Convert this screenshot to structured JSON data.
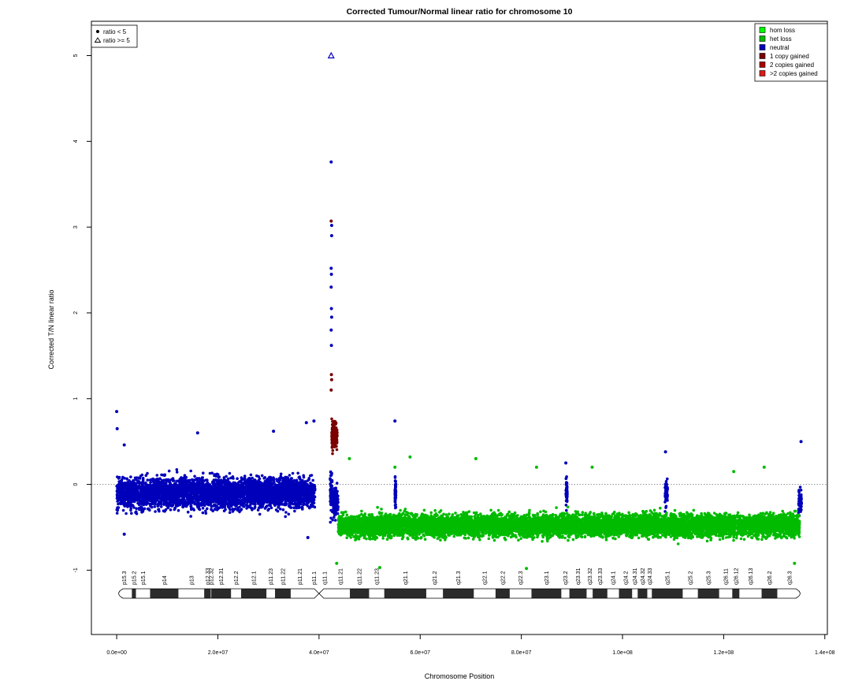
{
  "chart_data": {
    "type": "scatter",
    "title": "Corrected Tumour/Normal linear ratio for chromosome  10",
    "xlabel": "Chromosome Position",
    "ylabel": "Corrected T/N linear ratio",
    "xlim": [
      -5000000,
      140500000
    ],
    "ylim": [
      -1.75,
      5.4
    ],
    "x_ticks": [
      0,
      20000000,
      40000000,
      60000000,
      80000000,
      100000000,
      120000000,
      140000000
    ],
    "x_tick_labels": [
      "0.0e+00",
      "2.0e+07",
      "4.0e+07",
      "6.0e+07",
      "8.0e+07",
      "1.0e+08",
      "1.2e+08",
      "1.4e+08"
    ],
    "y_ticks": [
      -1,
      0,
      1,
      2,
      3,
      4,
      5
    ],
    "y_tick_labels": [
      "-1",
      "0",
      "1",
      "2",
      "3",
      "4",
      "5"
    ],
    "reference_line_y": 0,
    "colors": {
      "hom_loss": "#00ff00",
      "het_loss": "#00bb00",
      "neutral": "#0000bb",
      "one_copy_gained": "#7a0000",
      "two_copies_gained": "#aa0000",
      "gt_two_copies_gained": "#dd1a1a"
    },
    "series": [
      {
        "name": "neutral",
        "color": "#0000bb",
        "segments": [
          {
            "x_start": 0,
            "x_end": 39200000,
            "mean": -0.1,
            "spread": 0.34
          },
          {
            "x_start": 42200000,
            "x_end": 42600000,
            "mean": -0.1,
            "spread": 0.5
          },
          {
            "x_start": 42650000,
            "x_end": 43800000,
            "mean": -0.2,
            "spread": 0.3
          },
          {
            "x_start": 55000000,
            "x_end": 55200000,
            "mean": -0.1,
            "spread": 0.3
          },
          {
            "x_start": 88800000,
            "x_end": 89100000,
            "mean": -0.1,
            "spread": 0.3
          },
          {
            "x_start": 108400000,
            "x_end": 108900000,
            "mean": -0.1,
            "spread": 0.3
          },
          {
            "x_start": 134800000,
            "x_end": 135400000,
            "mean": -0.2,
            "spread": 0.3
          }
        ],
        "outliers": [
          {
            "x": 0,
            "y": 0.85
          },
          {
            "x": 100000,
            "y": 0.65
          },
          {
            "x": 1500000,
            "y": 0.46
          },
          {
            "x": 16000000,
            "y": 0.6
          },
          {
            "x": 31000000,
            "y": 0.62
          },
          {
            "x": 37500000,
            "y": 0.72
          },
          {
            "x": 39000000,
            "y": 0.74
          },
          {
            "x": 37800000,
            "y": -0.62
          },
          {
            "x": 1500000,
            "y": -0.58
          },
          {
            "x": 42400000,
            "y": 3.76
          },
          {
            "x": 42500000,
            "y": 3.02
          },
          {
            "x": 42500000,
            "y": 2.9
          },
          {
            "x": 42400000,
            "y": 2.52
          },
          {
            "x": 42450000,
            "y": 2.45
          },
          {
            "x": 42400000,
            "y": 2.3
          },
          {
            "x": 42450000,
            "y": 2.05
          },
          {
            "x": 42500000,
            "y": 1.95
          },
          {
            "x": 42400000,
            "y": 1.8
          },
          {
            "x": 42450000,
            "y": 1.62
          },
          {
            "x": 55000000,
            "y": 0.74
          },
          {
            "x": 88800000,
            "y": 0.25
          },
          {
            "x": 108500000,
            "y": 0.38
          },
          {
            "x": 135300000,
            "y": 0.5
          }
        ]
      },
      {
        "name": "het loss",
        "color": "#00bb00",
        "segments": [
          {
            "x_start": 43800000,
            "x_end": 135000000,
            "mean": -0.48,
            "spread": 0.25
          }
        ],
        "outliers": [
          {
            "x": 46000000,
            "y": 0.3
          },
          {
            "x": 55000000,
            "y": 0.2
          },
          {
            "x": 58000000,
            "y": 0.32
          },
          {
            "x": 71000000,
            "y": 0.3
          },
          {
            "x": 83000000,
            "y": 0.2
          },
          {
            "x": 94000000,
            "y": 0.2
          },
          {
            "x": 128000000,
            "y": 0.2
          },
          {
            "x": 122000000,
            "y": 0.15
          },
          {
            "x": 81000000,
            "y": -0.98
          },
          {
            "x": 52000000,
            "y": -0.97
          },
          {
            "x": 134000000,
            "y": -0.92
          },
          {
            "x": 43500000,
            "y": -0.92
          }
        ]
      },
      {
        "name": "1 copy gained",
        "color": "#7a0000",
        "segments": [
          {
            "x_start": 42500000,
            "x_end": 43600000,
            "mean": 0.55,
            "spread": 0.35
          }
        ],
        "outliers": [
          {
            "x": 42400000,
            "y": 3.07
          },
          {
            "x": 42450000,
            "y": 1.28
          },
          {
            "x": 42500000,
            "y": 1.22
          },
          {
            "x": 42400000,
            "y": 1.1
          }
        ]
      }
    ],
    "capped_points": [
      {
        "x": 42400000,
        "y": 5.0,
        "color": "#0000bb"
      }
    ],
    "point_legend": [
      {
        "symbol": "filled-circle",
        "label": "ratio < 5"
      },
      {
        "symbol": "open-triangle",
        "label": "ratio >= 5"
      }
    ],
    "legend": {
      "position": "top-right",
      "items": [
        {
          "label": "hom loss",
          "color": "#00ff00"
        },
        {
          "label": "het loss",
          "color": "#00bb00"
        },
        {
          "label": "neutral",
          "color": "#0000bb"
        },
        {
          "label": "1 copy gained",
          "color": "#7a0000"
        },
        {
          "label": "2 copies gained",
          "color": "#aa0000"
        },
        {
          "label": ">2 copies gained",
          "color": "#dd1a1a"
        }
      ]
    },
    "ideogram": {
      "centromere": 40000000,
      "chromosome_length": 135500000,
      "bands": [
        {
          "name": "p15.3",
          "start": 0,
          "end": 3000000,
          "stain": "gneg"
        },
        {
          "name": "p15.2",
          "start": 3000000,
          "end": 3800000,
          "stain": "gpos"
        },
        {
          "name": "p15.1",
          "start": 3800000,
          "end": 6600000,
          "stain": "gneg"
        },
        {
          "name": "p14",
          "start": 6600000,
          "end": 12200000,
          "stain": "gpos"
        },
        {
          "name": "p13",
          "start": 12200000,
          "end": 17300000,
          "stain": "gneg"
        },
        {
          "name": "p12.33",
          "start": 17300000,
          "end": 18600000,
          "stain": "gpos"
        },
        {
          "name": "p12.32",
          "start": 18600000,
          "end": 18700000,
          "stain": "gneg"
        },
        {
          "name": "p12.31",
          "start": 18700000,
          "end": 22600000,
          "stain": "gpos"
        },
        {
          "name": "p12.2",
          "start": 22600000,
          "end": 24600000,
          "stain": "gneg"
        },
        {
          "name": "p12.1",
          "start": 24600000,
          "end": 29600000,
          "stain": "gpos"
        },
        {
          "name": "p11.23",
          "start": 29600000,
          "end": 31300000,
          "stain": "gneg"
        },
        {
          "name": "p11.22",
          "start": 31300000,
          "end": 34400000,
          "stain": "gpos"
        },
        {
          "name": "p11.21",
          "start": 34400000,
          "end": 38000000,
          "stain": "gneg"
        },
        {
          "name": "p11.1",
          "start": 38000000,
          "end": 40000000,
          "stain": "acen"
        },
        {
          "name": "q11.1",
          "start": 40000000,
          "end": 42300000,
          "stain": "acen"
        },
        {
          "name": "q11.21",
          "start": 42300000,
          "end": 46100000,
          "stain": "gneg"
        },
        {
          "name": "q11.22",
          "start": 46100000,
          "end": 49900000,
          "stain": "gpos"
        },
        {
          "name": "q11.23",
          "start": 49900000,
          "end": 52900000,
          "stain": "gneg"
        },
        {
          "name": "q21.1",
          "start": 52900000,
          "end": 61200000,
          "stain": "gpos"
        },
        {
          "name": "q21.2",
          "start": 61200000,
          "end": 64500000,
          "stain": "gneg"
        },
        {
          "name": "q21.3",
          "start": 64500000,
          "end": 70600000,
          "stain": "gpos"
        },
        {
          "name": "q22.1",
          "start": 70600000,
          "end": 74900000,
          "stain": "gneg"
        },
        {
          "name": "q22.2",
          "start": 74900000,
          "end": 77700000,
          "stain": "gpos"
        },
        {
          "name": "q22.3",
          "start": 77700000,
          "end": 82000000,
          "stain": "gneg"
        },
        {
          "name": "q23.1",
          "start": 82000000,
          "end": 87900000,
          "stain": "gpos"
        },
        {
          "name": "q23.2",
          "start": 87900000,
          "end": 89500000,
          "stain": "gneg"
        },
        {
          "name": "q23.31",
          "start": 89500000,
          "end": 92900000,
          "stain": "gpos"
        },
        {
          "name": "q23.32",
          "start": 92900000,
          "end": 94100000,
          "stain": "gneg"
        },
        {
          "name": "q23.33",
          "start": 94100000,
          "end": 97000000,
          "stain": "gpos"
        },
        {
          "name": "q24.1",
          "start": 97000000,
          "end": 99300000,
          "stain": "gneg"
        },
        {
          "name": "q24.2",
          "start": 99300000,
          "end": 101900000,
          "stain": "gpos"
        },
        {
          "name": "q24.31",
          "start": 101900000,
          "end": 103000000,
          "stain": "gneg"
        },
        {
          "name": "q24.32",
          "start": 103000000,
          "end": 104900000,
          "stain": "gpos"
        },
        {
          "name": "q24.33",
          "start": 104900000,
          "end": 105800000,
          "stain": "gneg"
        },
        {
          "name": "q25.1",
          "start": 105800000,
          "end": 111900000,
          "stain": "gpos"
        },
        {
          "name": "q25.2",
          "start": 111900000,
          "end": 114900000,
          "stain": "gneg"
        },
        {
          "name": "q25.3",
          "start": 114900000,
          "end": 119100000,
          "stain": "gpos"
        },
        {
          "name": "q26.11",
          "start": 119100000,
          "end": 121700000,
          "stain": "gneg"
        },
        {
          "name": "q26.12",
          "start": 121700000,
          "end": 123100000,
          "stain": "gpos"
        },
        {
          "name": "q26.13",
          "start": 123100000,
          "end": 127500000,
          "stain": "gneg"
        },
        {
          "name": "q26.2",
          "start": 127500000,
          "end": 130600000,
          "stain": "gpos"
        },
        {
          "name": "q26.3",
          "start": 130600000,
          "end": 135500000,
          "stain": "gneg"
        }
      ]
    }
  }
}
